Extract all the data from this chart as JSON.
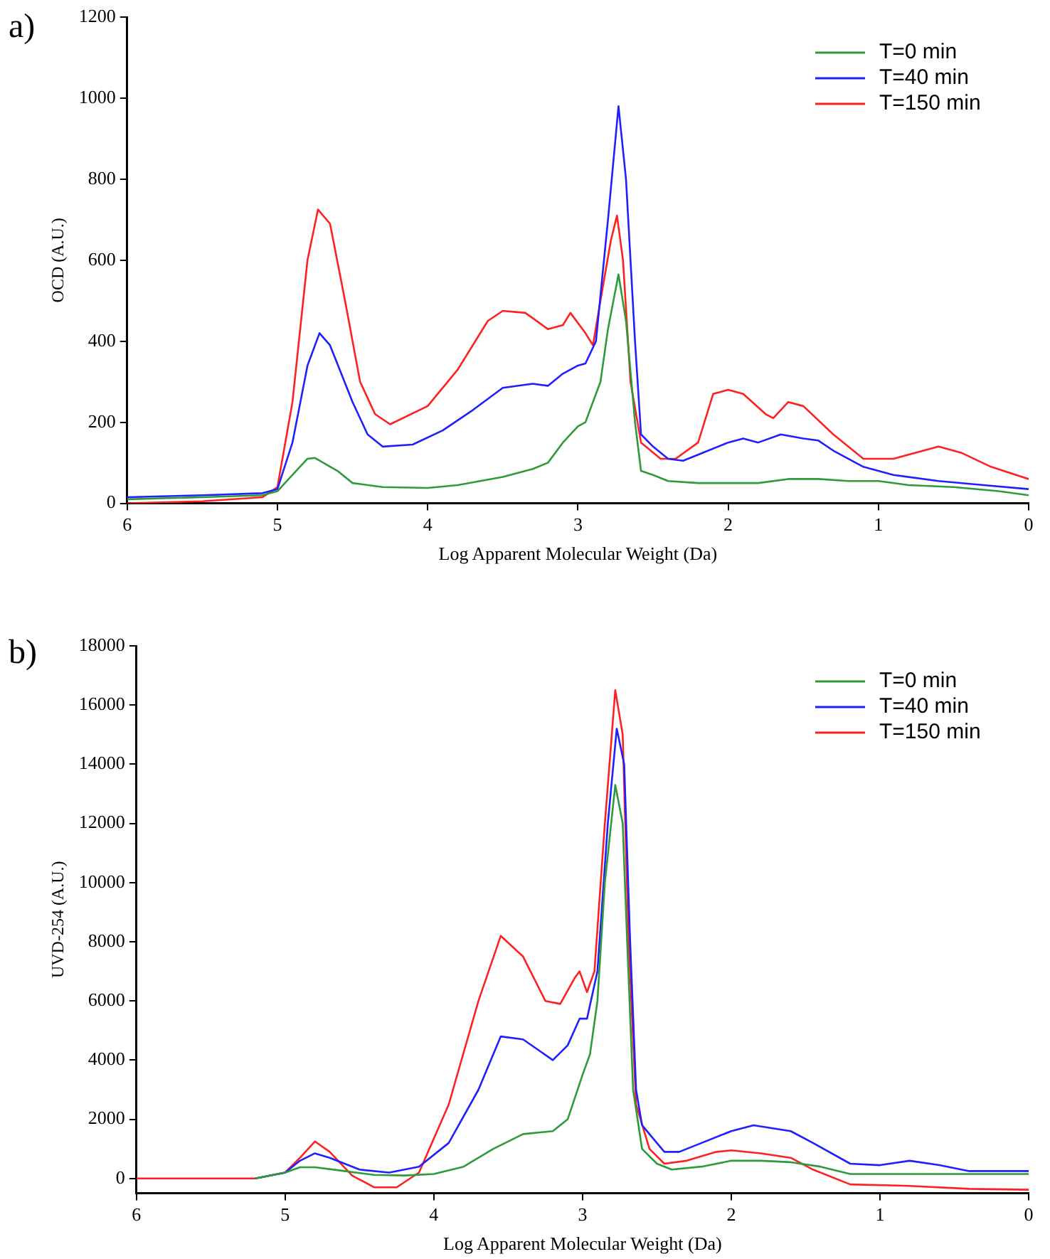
{
  "chart_data": [
    {
      "type": "line",
      "title": "a)",
      "xlabel": "Log Apparent Molecular Weight (Da)",
      "ylabel": "OCD (A.U.)",
      "xlim": [
        6,
        0
      ],
      "xticks": [
        6,
        5,
        4,
        3,
        2,
        1,
        0
      ],
      "ylim": [
        0,
        1200
      ],
      "yticks": [
        0,
        200,
        400,
        600,
        800,
        1000,
        1200
      ],
      "grid": false,
      "legend": "top right",
      "marker": "none",
      "line_style": "solid",
      "series": [
        {
          "name": "T=0 min",
          "color": "#2e9b3a",
          "x": [
            6,
            5.5,
            5.1,
            5.0,
            4.9,
            4.8,
            4.75,
            4.6,
            4.5,
            4.3,
            4.0,
            3.8,
            3.5,
            3.3,
            3.2,
            3.1,
            3.0,
            2.95,
            2.85,
            2.8,
            2.73,
            2.68,
            2.62,
            2.58,
            2.5,
            2.4,
            2.2,
            2.0,
            1.8,
            1.6,
            1.4,
            1.2,
            1.0,
            0.8,
            0.5,
            0.2,
            0
          ],
          "values": [
            10,
            15,
            20,
            30,
            70,
            110,
            112,
            80,
            50,
            40,
            38,
            45,
            65,
            85,
            100,
            150,
            190,
            200,
            300,
            430,
            565,
            450,
            200,
            80,
            70,
            55,
            50,
            50,
            50,
            60,
            60,
            55,
            55,
            45,
            40,
            30,
            20
          ]
        },
        {
          "name": "T=40 min",
          "color": "#1f1fff",
          "x": [
            6,
            5.5,
            5.1,
            5.0,
            4.9,
            4.8,
            4.72,
            4.65,
            4.5,
            4.4,
            4.3,
            4.1,
            3.9,
            3.7,
            3.5,
            3.3,
            3.2,
            3.1,
            3.0,
            2.95,
            2.88,
            2.8,
            2.73,
            2.68,
            2.62,
            2.58,
            2.5,
            2.4,
            2.3,
            2.2,
            2.0,
            1.9,
            1.8,
            1.65,
            1.5,
            1.4,
            1.3,
            1.1,
            0.9,
            0.6,
            0.3,
            0
          ],
          "values": [
            15,
            20,
            25,
            35,
            150,
            340,
            420,
            390,
            250,
            170,
            140,
            145,
            180,
            230,
            285,
            295,
            290,
            320,
            340,
            345,
            400,
            700,
            980,
            800,
            400,
            170,
            140,
            110,
            105,
            120,
            150,
            160,
            150,
            170,
            160,
            155,
            130,
            90,
            70,
            55,
            45,
            35
          ]
        },
        {
          "name": "T=150 min",
          "color": "#ff2020",
          "x": [
            6,
            5.5,
            5.1,
            5.0,
            4.9,
            4.8,
            4.73,
            4.65,
            4.55,
            4.45,
            4.35,
            4.25,
            4.0,
            3.8,
            3.6,
            3.5,
            3.35,
            3.2,
            3.1,
            3.05,
            2.95,
            2.9,
            2.85,
            2.78,
            2.74,
            2.7,
            2.65,
            2.58,
            2.45,
            2.35,
            2.2,
            2.1,
            2.0,
            1.9,
            1.75,
            1.7,
            1.6,
            1.5,
            1.3,
            1.1,
            0.9,
            0.7,
            0.6,
            0.45,
            0.25,
            0
          ],
          "values": [
            0,
            5,
            15,
            40,
            250,
            600,
            725,
            690,
            500,
            300,
            220,
            195,
            240,
            330,
            450,
            475,
            470,
            430,
            440,
            470,
            420,
            390,
            500,
            650,
            710,
            600,
            300,
            150,
            110,
            110,
            150,
            270,
            280,
            270,
            220,
            210,
            250,
            240,
            170,
            110,
            110,
            130,
            140,
            125,
            90,
            60
          ]
        }
      ]
    },
    {
      "type": "line",
      "title": "b)",
      "xlabel": "Log Apparent Molecular Weight (Da)",
      "ylabel": "UVD-254 (A.U.)",
      "xlim": [
        6,
        0
      ],
      "xticks": [
        6,
        5,
        4,
        3,
        2,
        1,
        0
      ],
      "ylim": [
        -500,
        18000
      ],
      "yticks": [
        0,
        2000,
        4000,
        6000,
        8000,
        10000,
        12000,
        14000,
        16000,
        18000
      ],
      "grid": false,
      "legend": "top right",
      "marker": "none",
      "line_style": "solid",
      "series": [
        {
          "name": "T=0 min",
          "color": "#2e9b3a",
          "x": [
            5.2,
            5.0,
            4.9,
            4.8,
            4.6,
            4.4,
            4.2,
            4.0,
            3.8,
            3.6,
            3.4,
            3.2,
            3.1,
            3.0,
            2.95,
            2.9,
            2.85,
            2.78,
            2.73,
            2.7,
            2.66,
            2.6,
            2.5,
            2.4,
            2.2,
            2.0,
            1.8,
            1.6,
            1.4,
            1.2,
            1.0,
            0.5,
            0
          ],
          "values": [
            0,
            200,
            380,
            380,
            250,
            120,
            100,
            150,
            400,
            1000,
            1500,
            1600,
            2000,
            3500,
            4200,
            6000,
            10000,
            13300,
            12000,
            8000,
            3000,
            1000,
            500,
            300,
            400,
            600,
            600,
            550,
            400,
            150,
            150,
            150,
            150
          ]
        },
        {
          "name": "T=40 min",
          "color": "#1f1fff",
          "x": [
            5.2,
            5.0,
            4.9,
            4.8,
            4.7,
            4.5,
            4.3,
            4.1,
            3.9,
            3.7,
            3.55,
            3.4,
            3.2,
            3.1,
            3.02,
            2.97,
            2.9,
            2.83,
            2.77,
            2.72,
            2.68,
            2.64,
            2.6,
            2.45,
            2.35,
            2.2,
            2.0,
            1.85,
            1.6,
            1.45,
            1.2,
            1.0,
            0.8,
            0.6,
            0.4,
            0
          ],
          "values": [
            0,
            200,
            600,
            850,
            700,
            300,
            200,
            400,
            1200,
            3000,
            4800,
            4700,
            4000,
            4500,
            5400,
            5400,
            7000,
            12000,
            15200,
            14000,
            8000,
            3000,
            1800,
            900,
            900,
            1200,
            1600,
            1800,
            1600,
            1200,
            500,
            450,
            600,
            450,
            250,
            250
          ]
        },
        {
          "name": "T=150 min",
          "color": "#ff2020",
          "x": [
            6,
            5.2,
            5.0,
            4.9,
            4.8,
            4.7,
            4.55,
            4.4,
            4.25,
            4.1,
            3.9,
            3.7,
            3.55,
            3.4,
            3.25,
            3.15,
            3.05,
            3.02,
            2.97,
            2.92,
            2.85,
            2.78,
            2.73,
            2.69,
            2.64,
            2.55,
            2.45,
            2.3,
            2.1,
            2.0,
            1.8,
            1.6,
            1.45,
            1.2,
            0.8,
            0.4,
            0
          ],
          "values": [
            0,
            0,
            200,
            700,
            1250,
            900,
            100,
            -300,
            -300,
            200,
            2500,
            6000,
            8200,
            7500,
            6000,
            5900,
            6800,
            7000,
            6300,
            7000,
            12000,
            16500,
            15000,
            8000,
            2500,
            1000,
            500,
            600,
            900,
            950,
            850,
            700,
            300,
            -200,
            -250,
            -350,
            -380
          ]
        }
      ]
    }
  ]
}
